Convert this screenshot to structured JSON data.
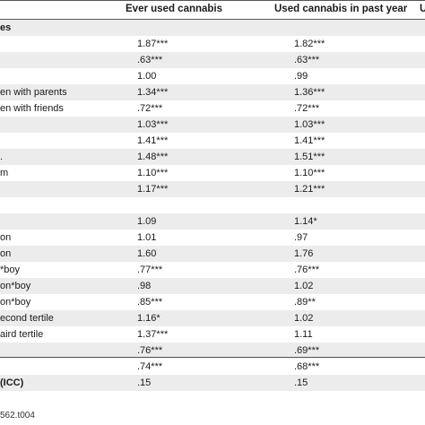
{
  "header": {
    "col1": "Ever used cannabis",
    "col2": "Used cannabis in past year",
    "col3": "U"
  },
  "rows": [
    {
      "label": "es",
      "c1": "",
      "c2": "",
      "bold": true,
      "shaded": true
    },
    {
      "label": "",
      "c1": "1.87***",
      "c2": "1.82***",
      "bold": false,
      "shaded": false
    },
    {
      "label": "",
      "c1": ".63***",
      "c2": ".63***",
      "bold": false,
      "shaded": true
    },
    {
      "label": "",
      "c1": "1.00",
      "c2": ".99",
      "bold": false,
      "shaded": false
    },
    {
      "label": "en with parents",
      "c1": "1.34***",
      "c2": "1.36***",
      "bold": false,
      "shaded": true
    },
    {
      "label": "en with friends",
      "c1": ".72***",
      "c2": ".72***",
      "bold": false,
      "shaded": false
    },
    {
      "label": "",
      "c1": "1.03***",
      "c2": "1.03***",
      "bold": false,
      "shaded": true
    },
    {
      "label": "",
      "c1": "1.41***",
      "c2": "1.41***",
      "bold": false,
      "shaded": false
    },
    {
      "label": ".",
      "c1": "1.48***",
      "c2": "1.51***",
      "bold": false,
      "shaded": true
    },
    {
      "label": "m",
      "c1": "1.10***",
      "c2": "1.10***",
      "bold": false,
      "shaded": false
    },
    {
      "label": "",
      "c1": "1.17***",
      "c2": "1.21***",
      "bold": false,
      "shaded": true
    },
    {
      "label": "",
      "c1": "",
      "c2": "",
      "bold": false,
      "shaded": false
    },
    {
      "label": "",
      "c1": "1.09",
      "c2": "1.14*",
      "bold": false,
      "shaded": true
    },
    {
      "label": "on",
      "c1": "1.01",
      "c2": ".97",
      "bold": false,
      "shaded": false
    },
    {
      "label": "on",
      "c1": "1.60",
      "c2": "1.76",
      "bold": false,
      "shaded": true
    },
    {
      "label": "*boy",
      "c1": ".77***",
      "c2": ".76***",
      "bold": false,
      "shaded": false
    },
    {
      "label": "on*boy",
      "c1": ".98",
      "c2": "1.02",
      "bold": false,
      "shaded": true
    },
    {
      "label": "on*boy",
      "c1": ".85***",
      "c2": ".89**",
      "bold": false,
      "shaded": false
    },
    {
      "label": "econd tertile",
      "c1": "1.16*",
      "c2": "1.02",
      "bold": false,
      "shaded": true
    },
    {
      "label": "aird tertile",
      "c1": "1.37***",
      "c2": "1.11",
      "bold": false,
      "shaded": false
    },
    {
      "label": "",
      "c1": ".76***",
      "c2": ".69***",
      "bold": false,
      "shaded": true
    },
    {
      "label": "",
      "c1": ".74***",
      "c2": ".68***",
      "bold": false,
      "shaded": false
    },
    {
      "label": "(ICC)",
      "c1": ".15",
      "c2": ".15",
      "bold": true,
      "shaded": true
    }
  ],
  "footer": "562.t004"
}
